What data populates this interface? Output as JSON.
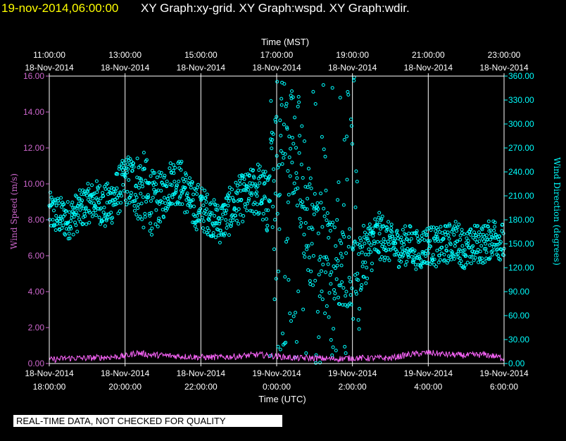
{
  "header": {
    "timestamp": "19-nov-2014,06:00:00",
    "titles": "XY Graph:xy-grid.  XY Graph:wspd.  XY Graph:wdir."
  },
  "footer": {
    "notice": "REAL-TIME DATA, NOT CHECKED FOR QUALITY"
  },
  "colors": {
    "wspd": "#ff66ff",
    "wdir": "#00ffff",
    "axis_left": "#cc66cc",
    "axis_right": "#00ffff",
    "grid": "#ffffff"
  },
  "chart_data": {
    "type": "scatter",
    "top_axis": {
      "label": "Time (MST)",
      "ticks": [
        {
          "time": "11:00:00",
          "date": "18-Nov-2014"
        },
        {
          "time": "13:00:00",
          "date": "18-Nov-2014"
        },
        {
          "time": "15:00:00",
          "date": "18-Nov-2014"
        },
        {
          "time": "17:00:00",
          "date": "18-Nov-2014"
        },
        {
          "time": "19:00:00",
          "date": "18-Nov-2014"
        },
        {
          "time": "21:00:00",
          "date": "18-Nov-2014"
        },
        {
          "time": "23:00:00",
          "date": "18-Nov-2014"
        }
      ]
    },
    "bottom_axis": {
      "label": "Time (UTC)",
      "ticks": [
        {
          "date": "18-Nov-2014",
          "time": "18:00:00"
        },
        {
          "date": "18-Nov-2014",
          "time": "20:00:00"
        },
        {
          "date": "18-Nov-2014",
          "time": "22:00:00"
        },
        {
          "date": "19-Nov-2014",
          "time": "0:00:00"
        },
        {
          "date": "19-Nov-2014",
          "time": "2:00:00"
        },
        {
          "date": "19-Nov-2014",
          "time": "4:00:00"
        },
        {
          "date": "19-Nov-2014",
          "time": "6:00:00"
        }
      ],
      "xlim_utc_hours": [
        18,
        30
      ]
    },
    "left_axis": {
      "label": "Wind Speed (m/s)",
      "ylim": [
        0,
        16
      ],
      "ticks": [
        "0.00",
        "2.00",
        "4.00",
        "6.00",
        "8.00",
        "10.00",
        "12.00",
        "14.00",
        "16.00"
      ]
    },
    "right_axis": {
      "label": "Wind Direction (degrees)",
      "ylim": [
        0,
        360
      ],
      "ticks": [
        "0.00",
        "30.00",
        "60.00",
        "90.00",
        "120.00",
        "150.00",
        "180.00",
        "210.00",
        "240.00",
        "270.00",
        "300.00",
        "330.00",
        "360.00"
      ]
    },
    "series": [
      {
        "key": "wspd",
        "x_utc_hours": [
          18.0,
          18.5,
          19.0,
          19.5,
          20.0,
          20.3,
          20.6,
          21.0,
          21.5,
          22.0,
          22.5,
          23.0,
          23.5,
          24.0,
          24.5,
          25.0,
          25.5,
          26.0,
          26.5,
          27.0,
          27.5,
          28.0,
          28.5,
          29.0,
          29.5,
          30.0
        ],
        "values": [
          0.2,
          0.3,
          0.3,
          0.35,
          0.4,
          0.6,
          0.5,
          0.45,
          0.4,
          0.35,
          0.35,
          0.4,
          0.5,
          0.4,
          0.3,
          0.3,
          0.25,
          0.3,
          0.3,
          0.3,
          0.5,
          0.6,
          0.5,
          0.45,
          0.5,
          0.3
        ]
      },
      {
        "key": "wdir",
        "x_utc_hours": [
          18.0,
          18.25,
          18.5,
          18.75,
          19.0,
          19.25,
          19.5,
          19.75,
          20.0,
          20.25,
          20.5,
          20.75,
          21.0,
          21.25,
          21.5,
          21.75,
          22.0,
          22.25,
          22.5,
          22.75,
          23.0,
          23.25,
          23.5,
          23.75,
          24.0,
          24.25,
          24.5,
          24.75,
          25.0,
          25.25,
          25.5,
          25.75,
          26.0,
          26.25,
          26.5,
          26.75,
          27.0,
          27.25,
          27.5,
          27.75,
          28.0,
          28.25,
          28.5,
          28.75,
          29.0,
          29.25,
          29.5,
          29.75,
          30.0
        ],
        "values": [
          190,
          185,
          180,
          190,
          200,
          205,
          195,
          210,
          230,
          225,
          215,
          200,
          210,
          230,
          225,
          200,
          195,
          185,
          175,
          190,
          205,
          210,
          220,
          200,
          300,
          310,
          280,
          200,
          150,
          140,
          130,
          120,
          110,
          130,
          150,
          160,
          150,
          145,
          150,
          140,
          150,
          145,
          150,
          155,
          140,
          150,
          150,
          160,
          150
        ],
        "spread": [
          25,
          25,
          25,
          25,
          25,
          25,
          30,
          30,
          30,
          40,
          50,
          40,
          30,
          30,
          30,
          30,
          30,
          25,
          25,
          30,
          30,
          30,
          35,
          40,
          60,
          60,
          80,
          80,
          70,
          60,
          50,
          50,
          40,
          40,
          35,
          30,
          25,
          25,
          25,
          25,
          25,
          25,
          25,
          25,
          25,
          25,
          25,
          25,
          25
        ]
      }
    ]
  }
}
